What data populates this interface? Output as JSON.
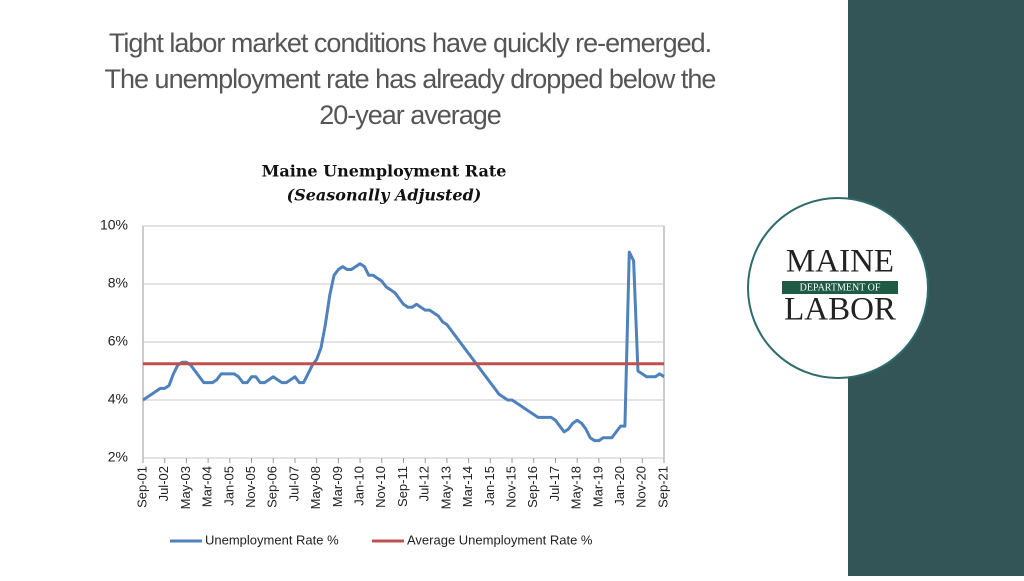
{
  "slide": {
    "title_lines": [
      "Tight labor market conditions have quickly re-emerged.",
      "The unemployment rate has already dropped below the",
      "20-year average"
    ],
    "logo": {
      "top": "MAINE",
      "middle": "DEPARTMENT OF",
      "bottom": "LABOR"
    }
  },
  "chart_data": {
    "type": "line",
    "title": "Maine Unemployment Rate",
    "subtitle": "(Seasonally Adjusted)",
    "categories": [
      "Sep-01",
      null,
      null,
      null,
      null,
      "Jul-02",
      null,
      null,
      null,
      null,
      "May-03",
      null,
      null,
      null,
      null,
      "Mar-04",
      null,
      null,
      null,
      null,
      "Jan-05",
      null,
      null,
      null,
      null,
      "Nov-05",
      null,
      null,
      null,
      null,
      "Sep-06",
      null,
      null,
      null,
      null,
      "Jul-07",
      null,
      null,
      null,
      null,
      "May-08",
      null,
      null,
      null,
      null,
      "Mar-09",
      null,
      null,
      null,
      null,
      "Jan-10",
      null,
      null,
      null,
      null,
      "Nov-10",
      null,
      null,
      null,
      null,
      "Sep-11",
      null,
      null,
      null,
      null,
      "Jul-12",
      null,
      null,
      null,
      null,
      "May-13",
      null,
      null,
      null,
      null,
      "Mar-14",
      null,
      null,
      null,
      null,
      "Jan-15",
      null,
      null,
      null,
      null,
      "Nov-15",
      null,
      null,
      null,
      null,
      "Sep-16",
      null,
      null,
      null,
      null,
      "Jul-17",
      null,
      null,
      null,
      null,
      "May-18",
      null,
      null,
      null,
      null,
      "Mar-19",
      null,
      null,
      null,
      null,
      "Jan-20",
      null,
      null,
      null,
      null,
      "Nov-20",
      null,
      null,
      null,
      null,
      "Sep-21"
    ],
    "series": [
      {
        "name": "Unemployment Rate %",
        "color": "#4f81bd",
        "values": [
          4.0,
          4.1,
          4.2,
          4.3,
          4.4,
          4.4,
          4.5,
          4.9,
          5.2,
          5.3,
          5.3,
          5.2,
          5.0,
          4.8,
          4.6,
          4.6,
          4.6,
          4.7,
          4.9,
          4.9,
          4.9,
          4.9,
          4.8,
          4.6,
          4.6,
          4.8,
          4.8,
          4.6,
          4.6,
          4.7,
          4.8,
          4.7,
          4.6,
          4.6,
          4.7,
          4.8,
          4.6,
          4.6,
          4.9,
          5.2,
          5.4,
          5.8,
          6.6,
          7.6,
          8.3,
          8.5,
          8.6,
          8.5,
          8.5,
          8.6,
          8.7,
          8.6,
          8.3,
          8.3,
          8.2,
          8.1,
          7.9,
          7.8,
          7.7,
          7.5,
          7.3,
          7.2,
          7.2,
          7.3,
          7.2,
          7.1,
          7.1,
          7.0,
          6.9,
          6.7,
          6.6,
          6.4,
          6.2,
          6.0,
          5.8,
          5.6,
          5.4,
          5.2,
          5.0,
          4.8,
          4.6,
          4.4,
          4.2,
          4.1,
          4.0,
          4.0,
          3.9,
          3.8,
          3.7,
          3.6,
          3.5,
          3.4,
          3.4,
          3.4,
          3.4,
          3.3,
          3.1,
          2.9,
          3.0,
          3.2,
          3.3,
          3.2,
          3.0,
          2.7,
          2.6,
          2.6,
          2.7,
          2.7,
          2.7,
          2.9,
          3.1,
          3.1,
          9.1,
          8.8,
          5.0,
          4.9,
          4.8,
          4.8,
          4.8,
          4.9,
          4.8
        ]
      }
    ],
    "average": {
      "name": "Average Unemployment Rate %",
      "color": "#c0504d",
      "value": 5.25
    },
    "ylim": [
      2,
      10
    ],
    "yticks": [
      {
        "value": 2,
        "label": "2%"
      },
      {
        "value": 4,
        "label": "4%"
      },
      {
        "value": 6,
        "label": "6%"
      },
      {
        "value": 8,
        "label": "8%"
      },
      {
        "value": 10,
        "label": "10%"
      }
    ],
    "grid": true
  }
}
